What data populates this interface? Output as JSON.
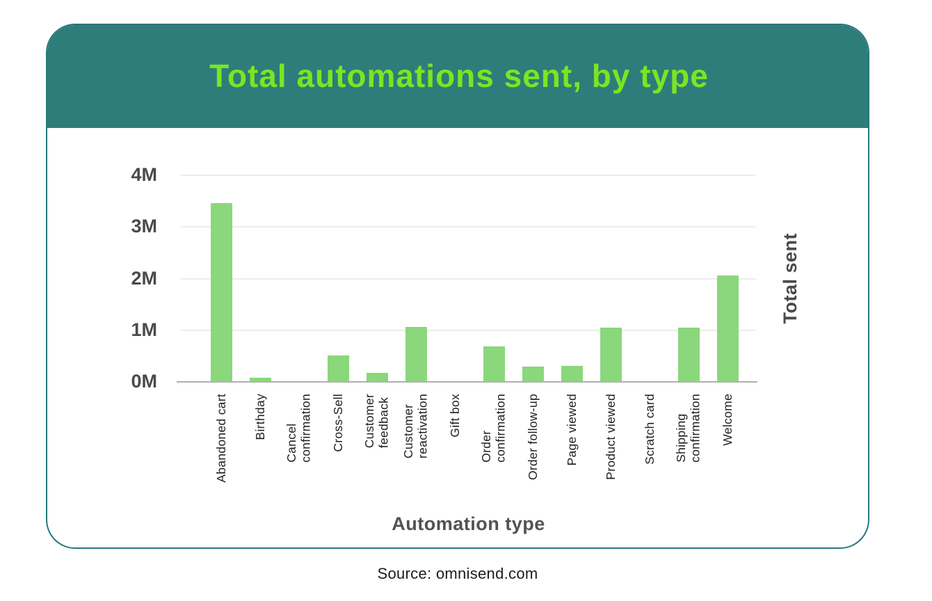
{
  "header": {
    "title": "Total automations sent, by type"
  },
  "chart_data": {
    "type": "bar",
    "title": "Total automations sent, by type",
    "xlabel": "Automation type",
    "ylabel": "Total sent",
    "categories": [
      "Abandoned cart",
      "Birthday",
      "Cancel\nconfirmation",
      "Cross-Sell",
      "Customer\nfeedback",
      "Customer\nreactivation",
      "Gift box",
      "Order\nconfirmation",
      "Order follow-up",
      "Page viewed",
      "Product viewed",
      "Scratch card",
      "Shipping\nconfirmation",
      "Welcome"
    ],
    "values": [
      3.45,
      0.07,
      0,
      0.5,
      0.16,
      1.05,
      0,
      0.67,
      0.28,
      0.3,
      1.04,
      0,
      1.04,
      2.05
    ],
    "unit": "millions",
    "ylim": [
      0,
      4
    ],
    "yticks": [
      "0M",
      "1M",
      "2M",
      "3M",
      "4M"
    ],
    "grid": true,
    "legend": false,
    "bar_color": "#8bd77c"
  },
  "footer": {
    "source": "Source: omnisend.com"
  },
  "colors": {
    "header_bg": "#2e7d7b",
    "title_text": "#7ce522",
    "card_border": "#26797b",
    "bar": "#8bd77c",
    "axis_text": "#4a4a4a",
    "category_text": "#1f1f1f",
    "gridline": "#ededed",
    "axis_line": "#b0b0b0"
  }
}
